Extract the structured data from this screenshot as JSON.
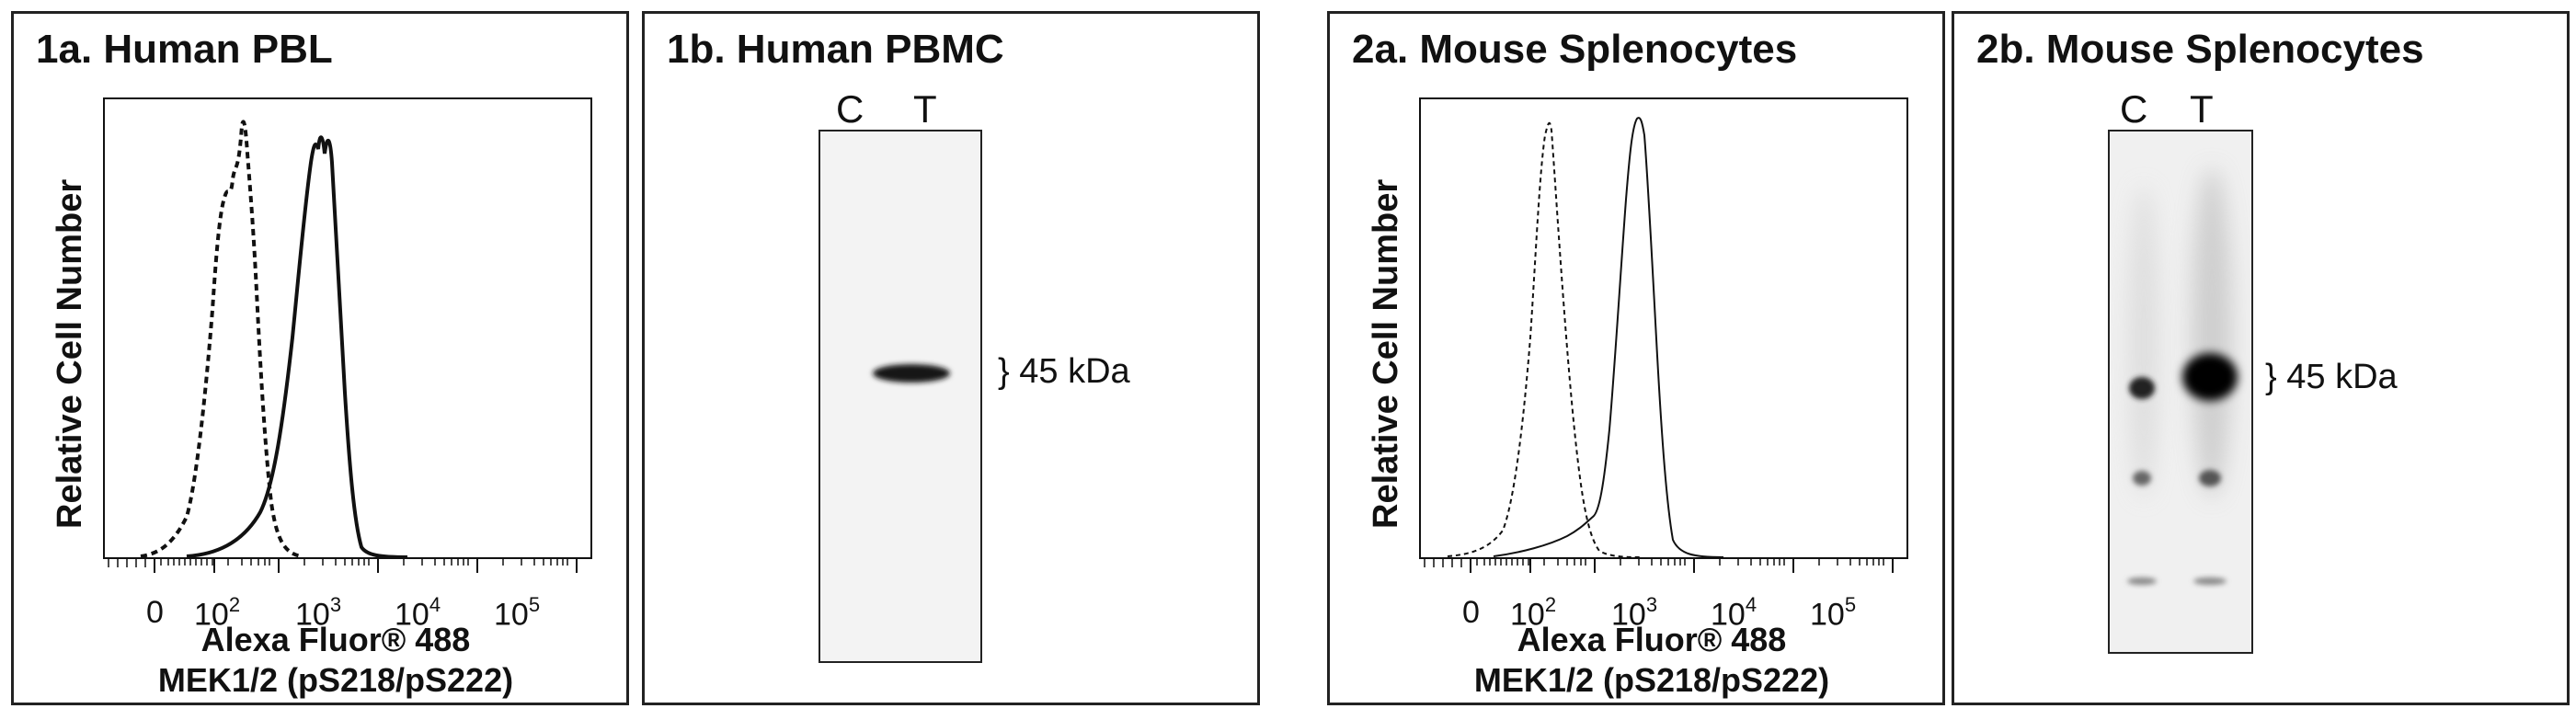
{
  "figure": {
    "panels": [
      {
        "id": "1a",
        "title": "1a.  Human PBL",
        "type": "flow-histogram",
        "y_axis_label": "Relative Cell Number",
        "x_axis_label_line1": "Alexa Fluor® 488",
        "x_axis_label_line2": "MEK1/2 (pS218/pS222)",
        "x_ticks": [
          {
            "base": "0",
            "exp": ""
          },
          {
            "base": "10",
            "exp": "2"
          },
          {
            "base": "10",
            "exp": "3"
          },
          {
            "base": "10",
            "exp": "4"
          },
          {
            "base": "10",
            "exp": "5"
          }
        ]
      },
      {
        "id": "1b",
        "title": "1b.  Human PBMC",
        "type": "western-blot",
        "lane_labels": [
          "C",
          "T"
        ],
        "marker_label": "} 45 kDa"
      },
      {
        "id": "2a",
        "title": "2a.  Mouse Splenocytes",
        "type": "flow-histogram",
        "y_axis_label": "Relative Cell Number",
        "x_axis_label_line1": "Alexa Fluor® 488",
        "x_axis_label_line2": "MEK1/2 (pS218/pS222)",
        "x_ticks": [
          {
            "base": "0",
            "exp": ""
          },
          {
            "base": "10",
            "exp": "2"
          },
          {
            "base": "10",
            "exp": "3"
          },
          {
            "base": "10",
            "exp": "4"
          },
          {
            "base": "10",
            "exp": "5"
          }
        ]
      },
      {
        "id": "2b",
        "title": "2b.  Mouse Splenocytes",
        "type": "western-blot",
        "lane_labels": [
          "C",
          "T"
        ],
        "marker_label": "} 45 kDa"
      }
    ]
  },
  "colors": {
    "ink": "#111111",
    "frame": "#222222",
    "blot_bg_1b": "#f3f3f3",
    "blot_bg_2b": "#f0f0f0"
  }
}
